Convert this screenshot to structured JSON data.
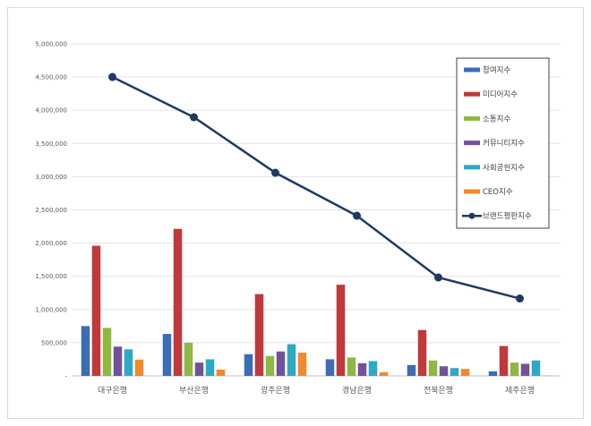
{
  "chart_data": {
    "type": "bar",
    "title": "",
    "xlabel": "",
    "ylabel": "",
    "ylim": [
      0,
      5000000
    ],
    "y_ticks": [
      "-",
      "500,000",
      "1,000,000",
      "1,500,000",
      "2,000,000",
      "2,500,000",
      "3,000,000",
      "3,500,000",
      "4,000,000",
      "4,500,000",
      "5,000,000"
    ],
    "grid": true,
    "legend_position": "right",
    "categories": [
      "대구은행",
      "부산은행",
      "광주은행",
      "경남은행",
      "전북은행",
      "제주은행"
    ],
    "series": [
      {
        "name": "참여지수",
        "type": "bar",
        "color": "#3a6db5",
        "values": [
          750000,
          632000,
          327000,
          250000,
          164000,
          68000
        ]
      },
      {
        "name": "미디어지수",
        "type": "bar",
        "color": "#c0393b",
        "values": [
          1960000,
          2214000,
          1232000,
          1373000,
          691000,
          450000
        ]
      },
      {
        "name": "소통지수",
        "type": "bar",
        "color": "#8fb842",
        "values": [
          723000,
          500000,
          300000,
          277000,
          232000,
          200000
        ]
      },
      {
        "name": "커뮤니티지수",
        "type": "bar",
        "color": "#71529a",
        "values": [
          441000,
          200000,
          368000,
          191000,
          145000,
          182000
        ]
      },
      {
        "name": "사회공헌지수",
        "type": "bar",
        "color": "#2fa8c4",
        "values": [
          400000,
          250000,
          477000,
          223000,
          118000,
          232000
        ]
      },
      {
        "name": "CEO지수",
        "type": "bar",
        "color": "#f08a2c",
        "values": [
          245000,
          95000,
          350000,
          55000,
          105000,
          5000
        ]
      },
      {
        "name": "브랜드평판지수",
        "type": "line",
        "color": "#1f3b64",
        "values": [
          4501000,
          3895000,
          3059000,
          2412000,
          1482000,
          1165000
        ]
      }
    ]
  }
}
